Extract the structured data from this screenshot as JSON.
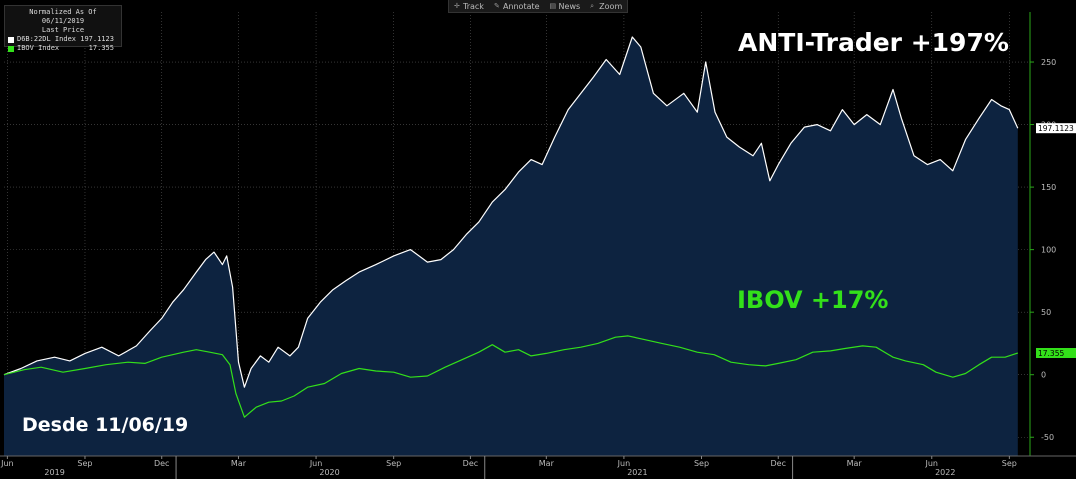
{
  "legend": {
    "line1": "Normalized As Of 06/11/2019",
    "line2": "Last Price",
    "rows": [
      {
        "label": "D6B:22DL Index",
        "value": "197.1123",
        "color": "#ffffff"
      },
      {
        "label": "IBOV Index",
        "value": "17.355",
        "color": "#33e01a"
      }
    ]
  },
  "toolbar": [
    {
      "label": "Track",
      "icon": "track-icon"
    },
    {
      "label": "Annotate",
      "icon": "annotate-icon"
    },
    {
      "label": "News",
      "icon": "news-icon"
    },
    {
      "label": "Zoom",
      "icon": "zoom-icon"
    }
  ],
  "annotations": {
    "anti": "ANTI-Trader +197%",
    "ibov": "IBOV +17%",
    "since": "Desde 11/06/19"
  },
  "colors": {
    "background": "#000000",
    "area_fill": "#0d2340",
    "anti_line": "#ffffff",
    "ibov_line": "#33e01a",
    "grid": "#555555",
    "axis_text": "#bbbbbb",
    "right_axis": "#2ba81a"
  },
  "chart_data": {
    "type": "line",
    "x_range": [
      "2019-06-11",
      "2022-09-30"
    ],
    "ylim": [
      -65,
      290
    ],
    "y_ticks": [
      -50,
      0,
      50,
      100,
      150,
      200,
      250
    ],
    "grid": true,
    "month_ticks": [
      {
        "label": "Jun",
        "date": "2019-06-15"
      },
      {
        "label": "Sep",
        "date": "2019-09-15"
      },
      {
        "label": "Dec",
        "date": "2019-12-15"
      },
      {
        "label": "Mar",
        "date": "2020-03-15"
      },
      {
        "label": "Jun",
        "date": "2020-06-15"
      },
      {
        "label": "Sep",
        "date": "2020-09-15"
      },
      {
        "label": "Dec",
        "date": "2020-12-15"
      },
      {
        "label": "Mar",
        "date": "2021-03-15"
      },
      {
        "label": "Jun",
        "date": "2021-06-15"
      },
      {
        "label": "Sep",
        "date": "2021-09-15"
      },
      {
        "label": "Dec",
        "date": "2021-12-15"
      },
      {
        "label": "Mar",
        "date": "2022-03-15"
      },
      {
        "label": "Jun",
        "date": "2022-06-15"
      },
      {
        "label": "Sep",
        "date": "2022-09-15"
      }
    ],
    "year_ticks": [
      {
        "label": "2019",
        "date": "2019-08-10"
      },
      {
        "label": "2020",
        "date": "2020-07-01"
      },
      {
        "label": "2021",
        "date": "2021-07-01"
      },
      {
        "label": "2022",
        "date": "2022-07-01"
      }
    ],
    "year_dividers": [
      "2020-01-01",
      "2021-01-01",
      "2022-01-01"
    ],
    "series": [
      {
        "name": "D6B:22DL Index",
        "last_label": "197.1123",
        "color": "#ffffff",
        "fill": true,
        "points": [
          [
            "2019-06-11",
            0
          ],
          [
            "2019-07-01",
            5
          ],
          [
            "2019-07-20",
            11
          ],
          [
            "2019-08-10",
            14
          ],
          [
            "2019-08-28",
            11
          ],
          [
            "2019-09-15",
            17
          ],
          [
            "2019-10-05",
            22
          ],
          [
            "2019-10-25",
            15
          ],
          [
            "2019-11-15",
            23
          ],
          [
            "2019-12-01",
            35
          ],
          [
            "2019-12-15",
            45
          ],
          [
            "2019-12-28",
            58
          ],
          [
            "2020-01-10",
            68
          ],
          [
            "2020-01-25",
            82
          ],
          [
            "2020-02-05",
            92
          ],
          [
            "2020-02-15",
            98
          ],
          [
            "2020-02-25",
            88
          ],
          [
            "2020-03-01",
            95
          ],
          [
            "2020-03-08",
            70
          ],
          [
            "2020-03-15",
            10
          ],
          [
            "2020-03-22",
            -10
          ],
          [
            "2020-03-30",
            5
          ],
          [
            "2020-04-10",
            15
          ],
          [
            "2020-04-20",
            10
          ],
          [
            "2020-05-01",
            22
          ],
          [
            "2020-05-15",
            15
          ],
          [
            "2020-05-25",
            22
          ],
          [
            "2020-06-05",
            45
          ],
          [
            "2020-06-20",
            58
          ],
          [
            "2020-07-05",
            68
          ],
          [
            "2020-07-20",
            75
          ],
          [
            "2020-08-05",
            82
          ],
          [
            "2020-08-25",
            88
          ],
          [
            "2020-09-15",
            95
          ],
          [
            "2020-10-05",
            100
          ],
          [
            "2020-10-25",
            90
          ],
          [
            "2020-11-10",
            92
          ],
          [
            "2020-11-25",
            100
          ],
          [
            "2020-12-10",
            112
          ],
          [
            "2020-12-25",
            122
          ],
          [
            "2021-01-10",
            138
          ],
          [
            "2021-01-25",
            148
          ],
          [
            "2021-02-10",
            162
          ],
          [
            "2021-02-25",
            172
          ],
          [
            "2021-03-10",
            168
          ],
          [
            "2021-03-25",
            190
          ],
          [
            "2021-04-10",
            212
          ],
          [
            "2021-04-25",
            225
          ],
          [
            "2021-05-10",
            238
          ],
          [
            "2021-05-25",
            252
          ],
          [
            "2021-06-10",
            240
          ],
          [
            "2021-06-25",
            270
          ],
          [
            "2021-07-05",
            262
          ],
          [
            "2021-07-20",
            225
          ],
          [
            "2021-08-05",
            215
          ],
          [
            "2021-08-25",
            225
          ],
          [
            "2021-09-10",
            210
          ],
          [
            "2021-09-20",
            250
          ],
          [
            "2021-10-01",
            210
          ],
          [
            "2021-10-15",
            190
          ],
          [
            "2021-10-30",
            182
          ],
          [
            "2021-11-15",
            175
          ],
          [
            "2021-11-25",
            185
          ],
          [
            "2021-12-05",
            155
          ],
          [
            "2021-12-15",
            168
          ],
          [
            "2021-12-30",
            185
          ],
          [
            "2022-01-15",
            198
          ],
          [
            "2022-01-30",
            200
          ],
          [
            "2022-02-15",
            195
          ],
          [
            "2022-03-01",
            212
          ],
          [
            "2022-03-15",
            200
          ],
          [
            "2022-03-30",
            208
          ],
          [
            "2022-04-15",
            200
          ],
          [
            "2022-04-30",
            228
          ],
          [
            "2022-05-10",
            205
          ],
          [
            "2022-05-25",
            175
          ],
          [
            "2022-06-10",
            168
          ],
          [
            "2022-06-25",
            172
          ],
          [
            "2022-07-10",
            163
          ],
          [
            "2022-07-25",
            188
          ],
          [
            "2022-08-10",
            205
          ],
          [
            "2022-08-25",
            220
          ],
          [
            "2022-09-05",
            215
          ],
          [
            "2022-09-15",
            212
          ],
          [
            "2022-09-25",
            197.1
          ]
        ]
      },
      {
        "name": "IBOV Index",
        "last_label": "17.355",
        "color": "#33e01a",
        "fill": false,
        "points": [
          [
            "2019-06-11",
            0
          ],
          [
            "2019-07-05",
            4
          ],
          [
            "2019-07-25",
            6
          ],
          [
            "2019-08-20",
            2
          ],
          [
            "2019-09-15",
            5
          ],
          [
            "2019-10-10",
            8
          ],
          [
            "2019-11-05",
            10
          ],
          [
            "2019-11-25",
            9
          ],
          [
            "2019-12-15",
            14
          ],
          [
            "2020-01-10",
            18
          ],
          [
            "2020-01-25",
            20
          ],
          [
            "2020-02-10",
            18
          ],
          [
            "2020-02-25",
            16
          ],
          [
            "2020-03-05",
            8
          ],
          [
            "2020-03-12",
            -15
          ],
          [
            "2020-03-22",
            -34
          ],
          [
            "2020-04-05",
            -26
          ],
          [
            "2020-04-20",
            -22
          ],
          [
            "2020-05-05",
            -21
          ],
          [
            "2020-05-20",
            -17
          ],
          [
            "2020-06-05",
            -10
          ],
          [
            "2020-06-25",
            -7
          ],
          [
            "2020-07-15",
            1
          ],
          [
            "2020-08-05",
            5
          ],
          [
            "2020-08-25",
            3
          ],
          [
            "2020-09-15",
            2
          ],
          [
            "2020-10-05",
            -2
          ],
          [
            "2020-10-25",
            -1
          ],
          [
            "2020-11-15",
            6
          ],
          [
            "2020-12-05",
            12
          ],
          [
            "2020-12-25",
            18
          ],
          [
            "2021-01-10",
            24
          ],
          [
            "2021-01-25",
            18
          ],
          [
            "2021-02-10",
            20
          ],
          [
            "2021-02-25",
            15
          ],
          [
            "2021-03-15",
            17
          ],
          [
            "2021-04-05",
            20
          ],
          [
            "2021-04-25",
            22
          ],
          [
            "2021-05-15",
            25
          ],
          [
            "2021-06-05",
            30
          ],
          [
            "2021-06-20",
            31
          ],
          [
            "2021-07-10",
            28
          ],
          [
            "2021-07-30",
            25
          ],
          [
            "2021-08-20",
            22
          ],
          [
            "2021-09-10",
            18
          ],
          [
            "2021-09-30",
            16
          ],
          [
            "2021-10-20",
            10
          ],
          [
            "2021-11-10",
            8
          ],
          [
            "2021-11-30",
            7
          ],
          [
            "2021-12-15",
            9
          ],
          [
            "2022-01-05",
            12
          ],
          [
            "2022-01-25",
            18
          ],
          [
            "2022-02-15",
            19
          ],
          [
            "2022-03-05",
            21
          ],
          [
            "2022-03-25",
            23
          ],
          [
            "2022-04-10",
            22
          ],
          [
            "2022-04-30",
            14
          ],
          [
            "2022-05-15",
            11
          ],
          [
            "2022-06-05",
            8
          ],
          [
            "2022-06-20",
            2
          ],
          [
            "2022-07-10",
            -2
          ],
          [
            "2022-07-25",
            1
          ],
          [
            "2022-08-10",
            8
          ],
          [
            "2022-08-25",
            14
          ],
          [
            "2022-09-10",
            14
          ],
          [
            "2022-09-25",
            17.355
          ]
        ]
      }
    ]
  }
}
